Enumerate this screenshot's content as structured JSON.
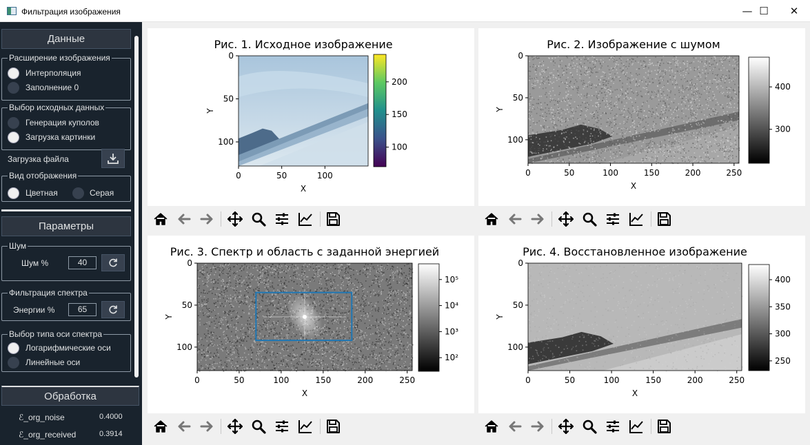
{
  "window": {
    "title": "Фильтрация изображения",
    "minimize_glyph": "—",
    "maximize_glyph": "☐",
    "close_glyph": "✕"
  },
  "sidebar": {
    "data_header": "Данные",
    "image_extension": {
      "title": "Расширение изображения",
      "options": [
        "Интерполяция",
        "Заполнение 0"
      ],
      "selected": 0
    },
    "source_data": {
      "title": "Выбор исходных данных",
      "options": [
        "Генерация куполов",
        "Загрузка картинки"
      ],
      "selected": 1
    },
    "file_load_label": "Загрузка файла",
    "display_mode": {
      "title": "Вид отображения",
      "options": [
        "Цветная",
        "Серая"
      ],
      "selected": 0
    },
    "params_header": "Параметры",
    "noise": {
      "title": "Шум",
      "label": "Шум %",
      "value": "40"
    },
    "spectrum_filter": {
      "title": "Фильтрация спектра",
      "label": "Энергии %",
      "value": "65"
    },
    "axis_type": {
      "title": "Выбор типа оси спектра",
      "options": [
        "Логарифмические оси",
        "Линейные оси"
      ],
      "selected": 0
    },
    "processing_header": "Обработка",
    "metrics": [
      {
        "name": "ℰ_org_noise",
        "value": "0.4000"
      },
      {
        "name": "ℰ_org_received",
        "value": "0.3914"
      }
    ]
  },
  "chart_data": [
    {
      "type": "heatmap",
      "title": "Рис. 1. Исходное изображение",
      "xlabel": "X",
      "ylabel": "Y",
      "x_ticks": [
        0,
        50,
        100
      ],
      "y_ticks": [
        0,
        50,
        100
      ],
      "xlim": [
        0,
        150
      ],
      "ylim": [
        128,
        0
      ],
      "colormap": "viridis",
      "colorbar_ticks": [
        100,
        150,
        200
      ],
      "colorbar_range": [
        70,
        242
      ]
    },
    {
      "type": "heatmap",
      "title": "Рис. 2. Изображение с шумом",
      "xlabel": "X",
      "ylabel": "Y",
      "x_ticks": [
        0,
        50,
        100,
        150,
        200,
        250
      ],
      "y_ticks": [
        0,
        50,
        100
      ],
      "xlim": [
        0,
        256
      ],
      "ylim": [
        128,
        0
      ],
      "colormap": "gray",
      "colorbar_ticks": [
        300,
        400
      ],
      "colorbar_range": [
        220,
        470
      ]
    },
    {
      "type": "heatmap",
      "title": "Рис. 3. Спектр и область с заданной энергией",
      "xlabel": "X",
      "ylabel": "Y",
      "x_ticks": [
        0,
        50,
        100,
        150,
        200,
        250
      ],
      "y_ticks": [
        0,
        50,
        100
      ],
      "xlim": [
        0,
        256
      ],
      "ylim": [
        128,
        0
      ],
      "colormap": "gray",
      "log_scale": true,
      "colorbar_tick_labels": [
        "10⁵",
        "10⁴",
        "10³",
        "10²"
      ],
      "colorbar_tick_values": [
        100000,
        10000,
        1000,
        100
      ],
      "colorbar_range": [
        30,
        400000
      ],
      "energy_box": {
        "x0": 70,
        "x1": 184,
        "y0": 35,
        "y1": 92,
        "color": "#1f77b4"
      }
    },
    {
      "type": "heatmap",
      "title": "Рис. 4. Восстановленное изображение",
      "xlabel": "X",
      "ylabel": "Y",
      "x_ticks": [
        0,
        50,
        100,
        150,
        200,
        250
      ],
      "y_ticks": [
        0,
        50,
        100
      ],
      "xlim": [
        0,
        256
      ],
      "ylim": [
        128,
        0
      ],
      "colormap": "gray",
      "colorbar_ticks": [
        250,
        300,
        350,
        400
      ],
      "colorbar_range": [
        232,
        428
      ]
    }
  ],
  "toolbar_icons": [
    "home-icon",
    "back-arrow-icon",
    "forward-arrow-icon",
    "pan-icon",
    "zoom-icon",
    "configure-subplots-icon",
    "edit-axis-icon",
    "save-icon"
  ],
  "colors": {
    "sidebar_bg": "#19232d",
    "sidebar_text": "#dfe1e2",
    "section_bg": "#2d3540",
    "energy_box": "#1f77b4"
  }
}
